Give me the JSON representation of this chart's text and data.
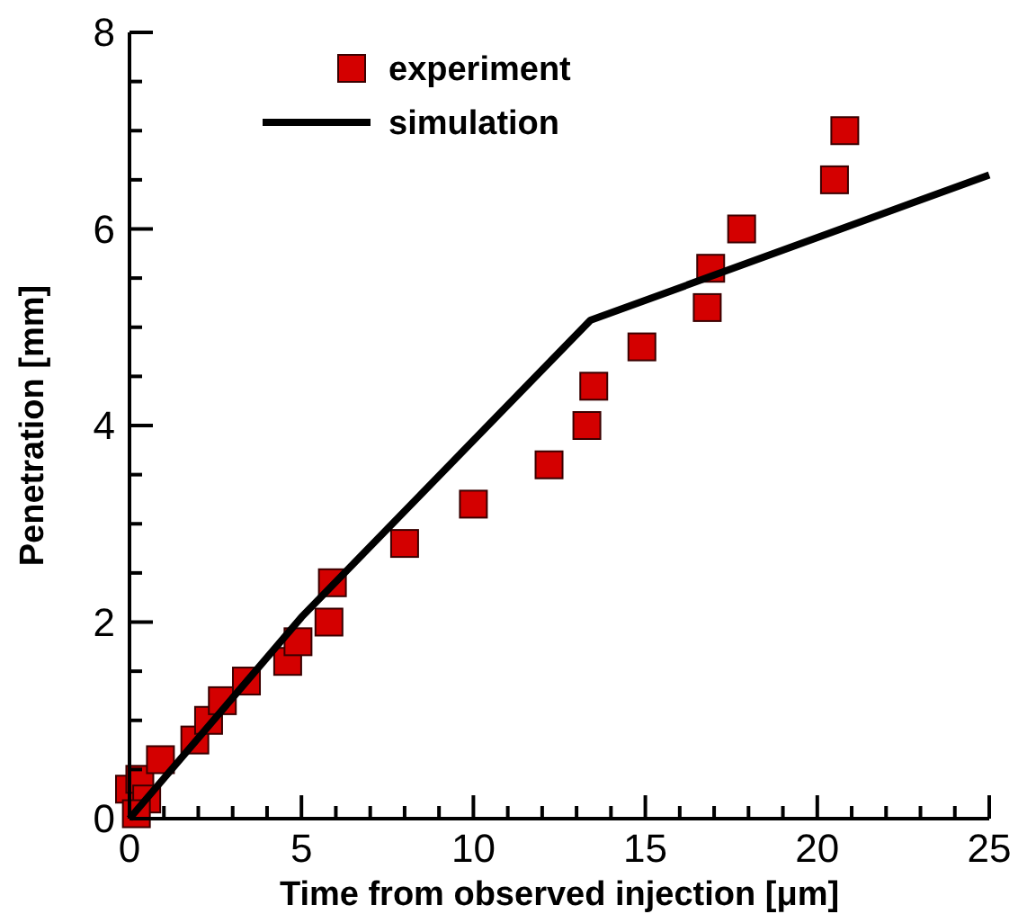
{
  "chart_data": {
    "type": "scatter",
    "xlabel": "Time from observed injection [μm]",
    "ylabel": "Penetration [mm]",
    "xlim": [
      0,
      25
    ],
    "ylim": [
      0,
      8
    ],
    "xticks": [
      0,
      {
        "value": 1,
        "label": null
      },
      {
        "value": 2,
        "label": null
      },
      {
        "value": 3,
        "label": null
      },
      {
        "value": 4,
        "label": null
      },
      5,
      {
        "value": 6,
        "label": null
      },
      {
        "value": 7,
        "label": null
      },
      {
        "value": 8,
        "label": null
      },
      {
        "value": 9,
        "label": null
      },
      10,
      {
        "value": 11,
        "label": null
      },
      {
        "value": 12,
        "label": null
      },
      {
        "value": 13,
        "label": null
      },
      {
        "value": 14,
        "label": null
      },
      15,
      {
        "value": 16,
        "label": null
      },
      {
        "value": 17,
        "label": null
      },
      {
        "value": 18,
        "label": null
      },
      {
        "value": 19,
        "label": null
      },
      20,
      {
        "value": 21,
        "label": null
      },
      {
        "value": 22,
        "label": null
      },
      {
        "value": 23,
        "label": null
      },
      {
        "value": 24,
        "label": null
      },
      25
    ],
    "yticks": [
      0,
      {
        "value": 0.5,
        "label": null
      },
      {
        "value": 1,
        "label": null
      },
      {
        "value": 1.5,
        "label": null
      },
      2,
      {
        "value": 2.5,
        "label": null
      },
      {
        "value": 3,
        "label": null
      },
      {
        "value": 3.5,
        "label": null
      },
      4,
      {
        "value": 4.5,
        "label": null
      },
      {
        "value": 5,
        "label": null
      },
      {
        "value": 5.5,
        "label": null
      },
      6,
      {
        "value": 6.5,
        "label": null
      },
      {
        "value": 7,
        "label": null
      },
      {
        "value": 7.5,
        "label": null
      },
      8
    ],
    "legend": "top left",
    "grid": false,
    "series": [
      {
        "name": "experiment",
        "marker": "square",
        "color": "#d40000",
        "x": [
          0,
          0.3,
          0.5,
          0.2,
          0.9,
          1.9,
          2.3,
          2.7,
          3.4,
          4.6,
          4.9,
          5.8,
          5.9,
          8.0,
          10.0,
          12.2,
          13.3,
          13.5,
          14.9,
          16.8,
          16.9,
          17.8,
          20.5,
          20.8
        ],
        "values": [
          0.3,
          0.4,
          0.2,
          0.05,
          0.6,
          0.8,
          1.0,
          1.2,
          1.4,
          1.6,
          1.8,
          2.0,
          2.4,
          2.8,
          3.2,
          3.6,
          4.0,
          4.4,
          4.8,
          5.2,
          5.6,
          6.0,
          6.5,
          7.0
        ]
      },
      {
        "name": "simulation",
        "type": "line",
        "marker": "none",
        "line_style": "solid",
        "color": "#000000",
        "x": [
          0,
          5,
          13.4,
          25
        ],
        "values": [
          0,
          2.05,
          5.07,
          6.55
        ]
      }
    ]
  }
}
